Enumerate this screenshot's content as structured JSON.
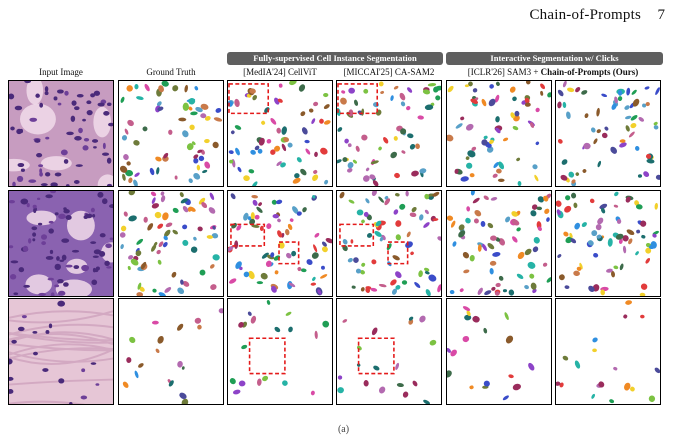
{
  "header": {
    "running_title": "Chain-of-Prompts",
    "page_number": "7"
  },
  "groups": {
    "supervised": "Fully-supervised Cell Instance Segmentation",
    "interactive": "Interactive Segmentation w/ Clicks"
  },
  "columns": [
    {
      "label": "Input Image"
    },
    {
      "label": "Ground Truth"
    },
    {
      "label": "[MedIA'24] CellViT"
    },
    {
      "label": "[MICCAI'25] CA-SAM2"
    },
    {
      "label_prefix": "[ICLR'26] SAM3 + ",
      "label_bold": "Chain-of-Prompts (Ours)"
    }
  ],
  "rows": [
    {
      "kind": "dense",
      "tissue": "#c79cc0",
      "density": 62
    },
    {
      "kind": "dense",
      "tissue": "#8a62b0",
      "density": 70
    },
    {
      "kind": "sparse",
      "tissue": "#e6c6d6",
      "density": 18
    }
  ],
  "palette": [
    "#e23b3b",
    "#f08a24",
    "#f2d02b",
    "#7cc242",
    "#1f9e55",
    "#26b3a6",
    "#2f8fe0",
    "#3a4cc9",
    "#8d43c8",
    "#d94aa6",
    "#8a5a2b",
    "#3d6b4a",
    "#6e7b3a",
    "#b36ab0",
    "#4b4b9a",
    "#c97a4a",
    "#58a0c8",
    "#9a2c5c",
    "#1c6e6e",
    "#c45e8c"
  ],
  "highlight_color": "#e41a1a",
  "caption_fragment": "(a)"
}
